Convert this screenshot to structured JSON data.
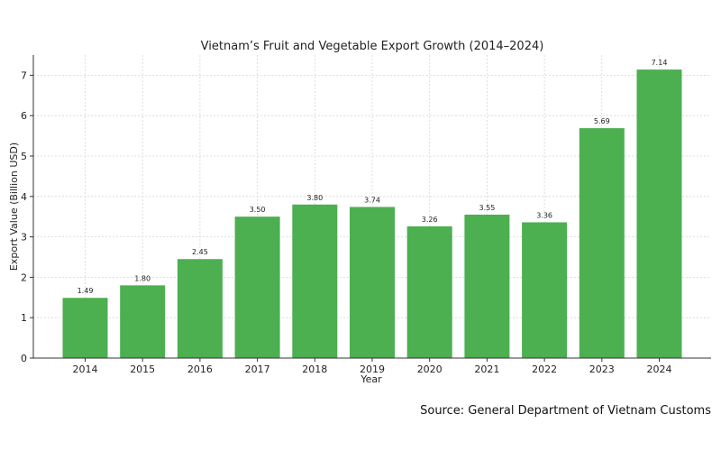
{
  "chart_data": {
    "type": "bar",
    "title": "Vietnam’s Fruit and Vegetable Export Growth (2014–2024)",
    "xlabel": "Year",
    "ylabel": "Export Value (Billion USD)",
    "categories": [
      "2014",
      "2015",
      "2016",
      "2017",
      "2018",
      "2019",
      "2020",
      "2021",
      "2022",
      "2023",
      "2024"
    ],
    "values": [
      1.49,
      1.8,
      2.45,
      3.5,
      3.8,
      3.74,
      3.26,
      3.55,
      3.36,
      5.69,
      7.14
    ],
    "value_labels": [
      "1.49",
      "1.80",
      "2.45",
      "3.50",
      "3.80",
      "3.74",
      "3.26",
      "3.55",
      "3.36",
      "5.69",
      "7.14"
    ],
    "ylim": [
      0,
      7.5
    ],
    "yticks": [
      0,
      1,
      2,
      3,
      4,
      5,
      6,
      7
    ],
    "grid": true,
    "bar_color": "#4caf50"
  },
  "footer": {
    "source": "Source: General Department of Vietnam Customs"
  }
}
